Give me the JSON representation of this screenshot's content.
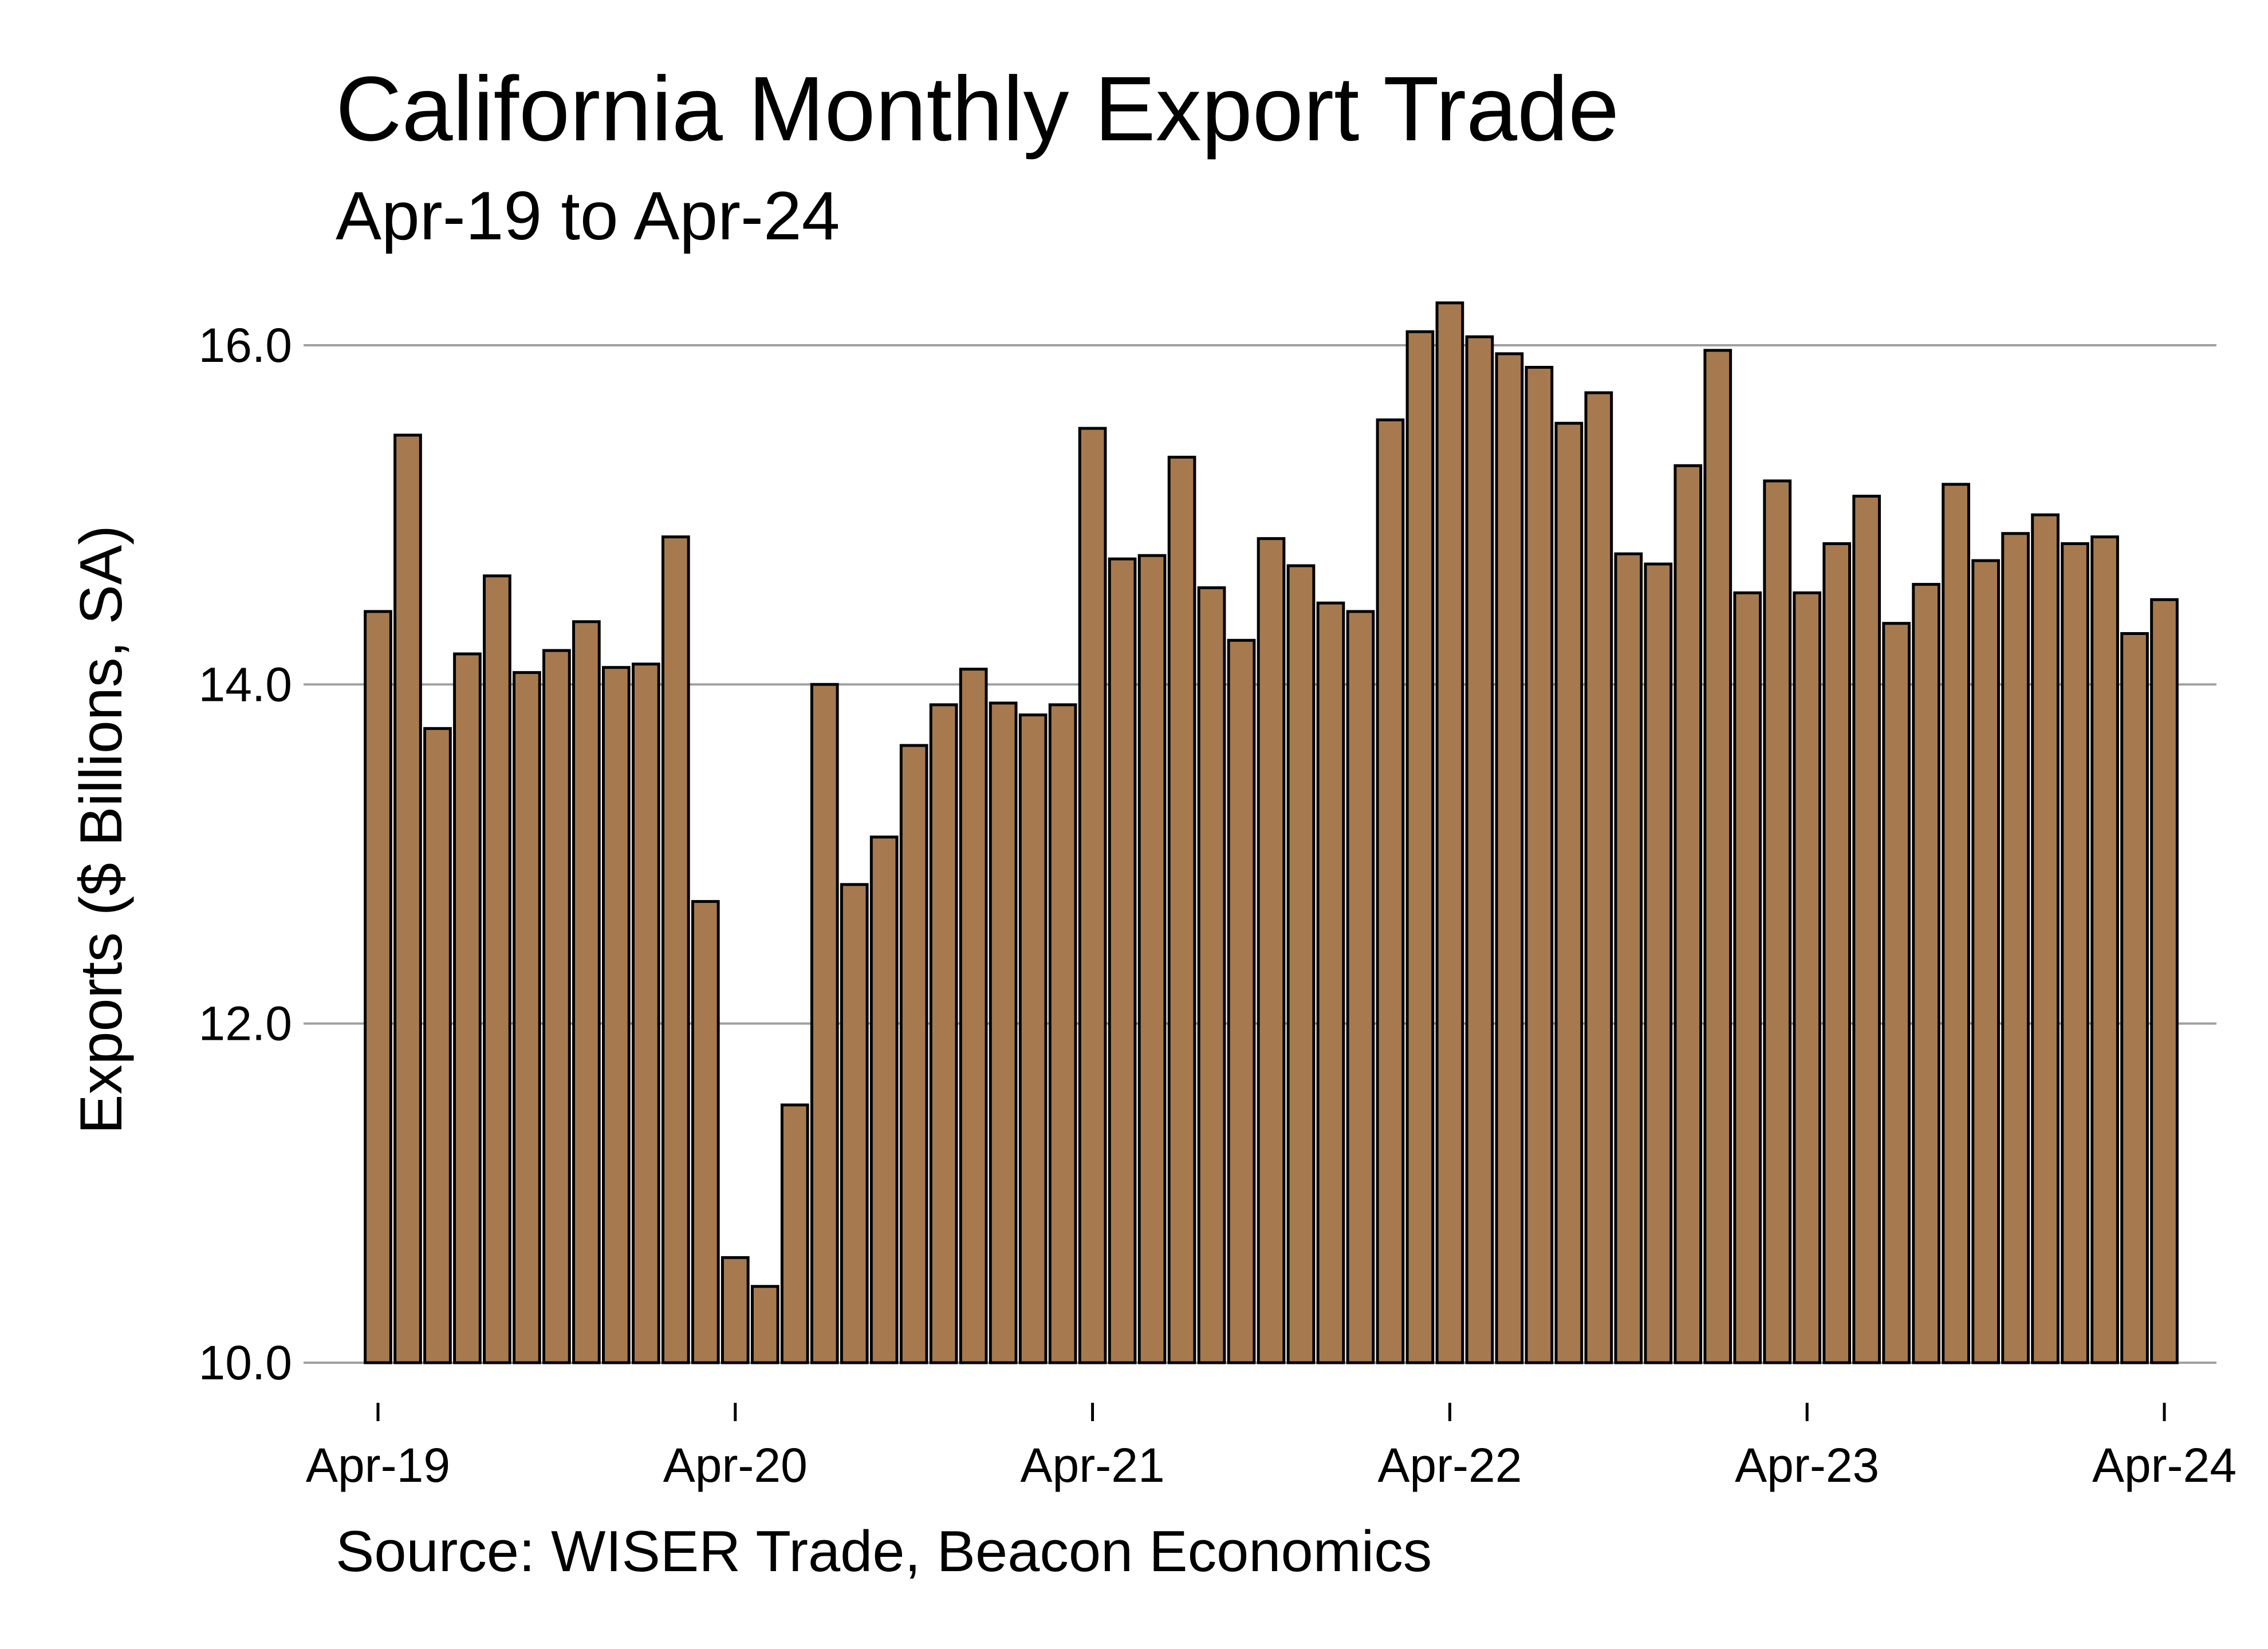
{
  "chart_data": {
    "type": "bar",
    "title": "California Monthly Export Trade",
    "subtitle": "Apr-19 to Apr-24",
    "ylabel": "Exports ($ Billions, SA)",
    "xlabel": "",
    "source": "Source: WISER Trade, Beacon Economics",
    "ylim": [
      10,
      16.4
    ],
    "yticks": [
      10.0,
      12.0,
      14.0,
      16.0
    ],
    "ytick_labels": [
      "10.0",
      "12.0",
      "14.0",
      "16.0"
    ],
    "xtick_labels": [
      "Apr-19",
      "Apr-20",
      "Apr-21",
      "Apr-22",
      "Apr-23",
      "Apr-24"
    ],
    "xtick_indices": [
      0,
      12,
      24,
      36,
      48,
      60
    ],
    "grid": "horizontal",
    "colors": {
      "bar": "#a67a4e",
      "edge": "#000000",
      "grid": "#a0a0a0"
    },
    "values": [
      14.43,
      15.47,
      13.74,
      14.18,
      14.64,
      14.07,
      14.2,
      14.37,
      14.1,
      14.12,
      14.87,
      12.72,
      10.62,
      10.45,
      11.52,
      14.0,
      12.82,
      13.1,
      13.64,
      13.88,
      14.09,
      13.89,
      13.82,
      13.88,
      15.51,
      14.74,
      14.76,
      15.34,
      14.57,
      14.26,
      14.86,
      14.7,
      14.48,
      14.43,
      15.56,
      16.08,
      16.25,
      16.05,
      15.95,
      15.87,
      15.54,
      15.72,
      14.77,
      14.71,
      15.29,
      15.97,
      14.54,
      15.2,
      14.54,
      14.83,
      15.11,
      14.36,
      14.59,
      15.18,
      14.73,
      14.89,
      15.0,
      14.83,
      14.87,
      14.3,
      14.5
    ]
  }
}
